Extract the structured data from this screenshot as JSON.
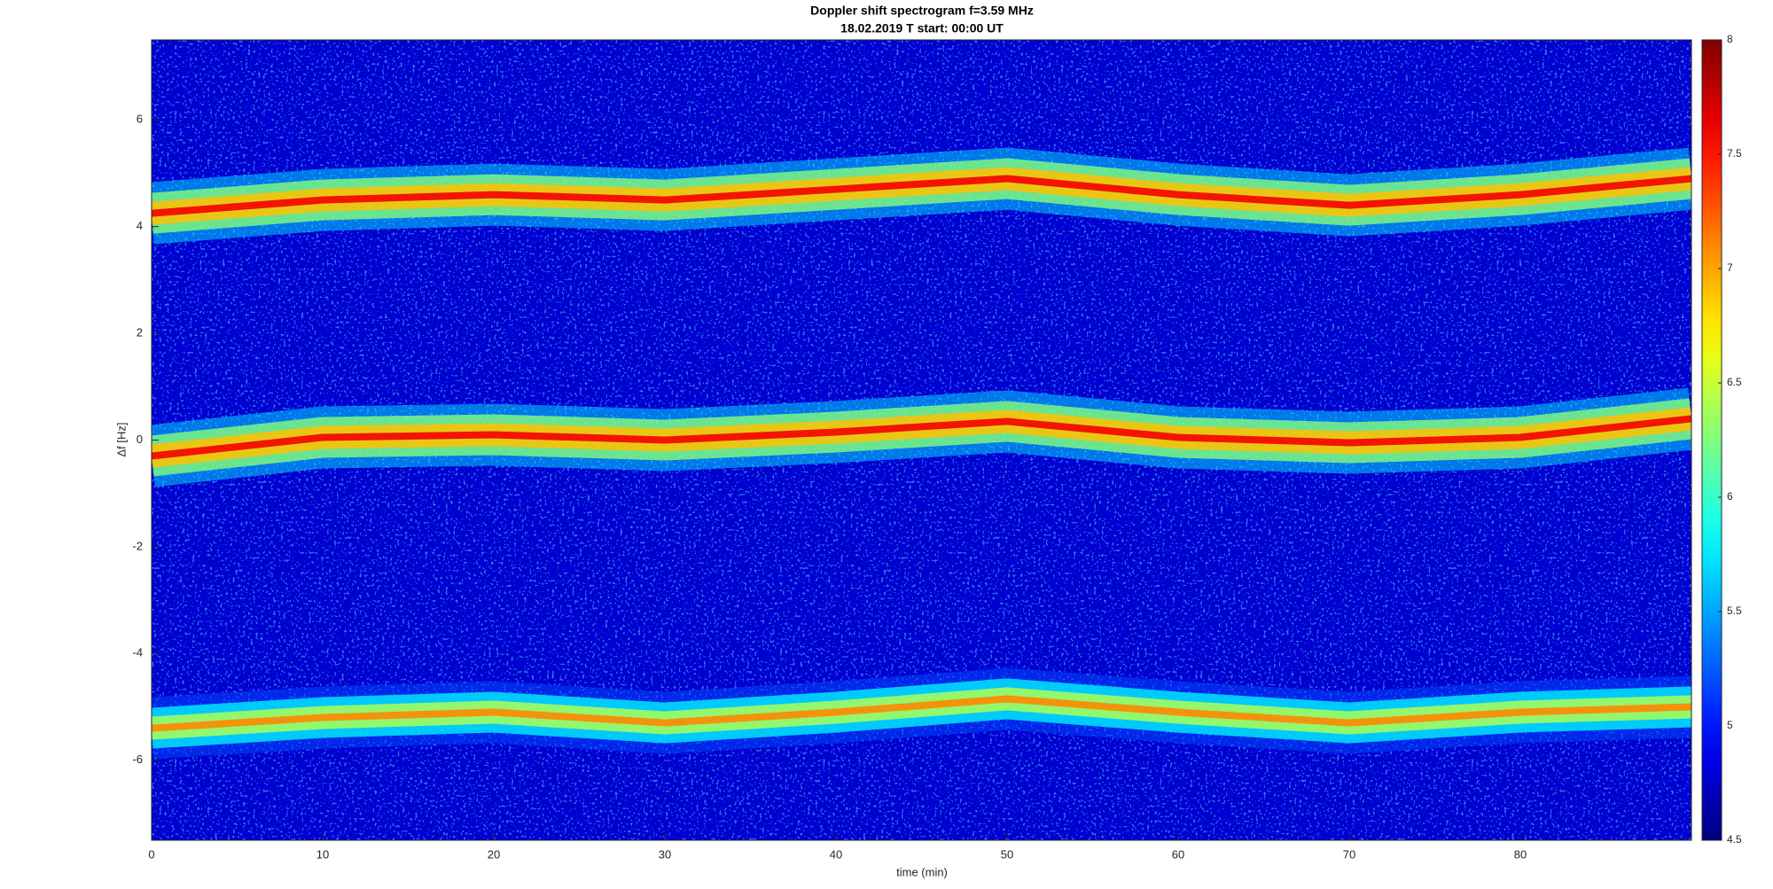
{
  "chart_data": {
    "type": "spectrogram",
    "title": "Doppler shift spectrogram f=3.59 MHz",
    "subtitle": "18.02.2019   T start: 00:00 UT",
    "x_label": "time (min)",
    "y_label": "Δf [Hz]",
    "xlim": [
      0,
      90
    ],
    "ylim": [
      -7.5,
      7.5
    ],
    "xticks": [
      0,
      10,
      20,
      30,
      40,
      50,
      60,
      70,
      80
    ],
    "yticks": [
      -6,
      -4,
      -2,
      0,
      2,
      4,
      6
    ],
    "colormap": "jet",
    "clim": [
      4.5,
      8
    ],
    "cticks": [
      4.5,
      5,
      5.5,
      6,
      6.5,
      7,
      7.5,
      8
    ],
    "traces": [
      {
        "x": [
          0,
          10,
          20,
          30,
          40,
          50,
          60,
          70,
          80,
          90
        ],
        "values": [
          4.25,
          4.5,
          4.6,
          4.5,
          4.7,
          4.9,
          4.6,
          4.4,
          4.6,
          4.9
        ],
        "level": 7.6
      },
      {
        "x": [
          0,
          10,
          20,
          30,
          40,
          50,
          60,
          70,
          80,
          90
        ],
        "values": [
          -0.3,
          0.05,
          0.1,
          0.0,
          0.15,
          0.35,
          0.05,
          -0.05,
          0.05,
          0.4
        ],
        "level": 7.6
      },
      {
        "x": [
          0,
          10,
          20,
          30,
          40,
          50,
          60,
          70,
          80,
          90
        ],
        "values": [
          -5.4,
          -5.2,
          -5.1,
          -5.3,
          -5.1,
          -4.85,
          -5.1,
          -5.3,
          -5.1,
          -5.0
        ],
        "level": 7.1
      }
    ]
  }
}
